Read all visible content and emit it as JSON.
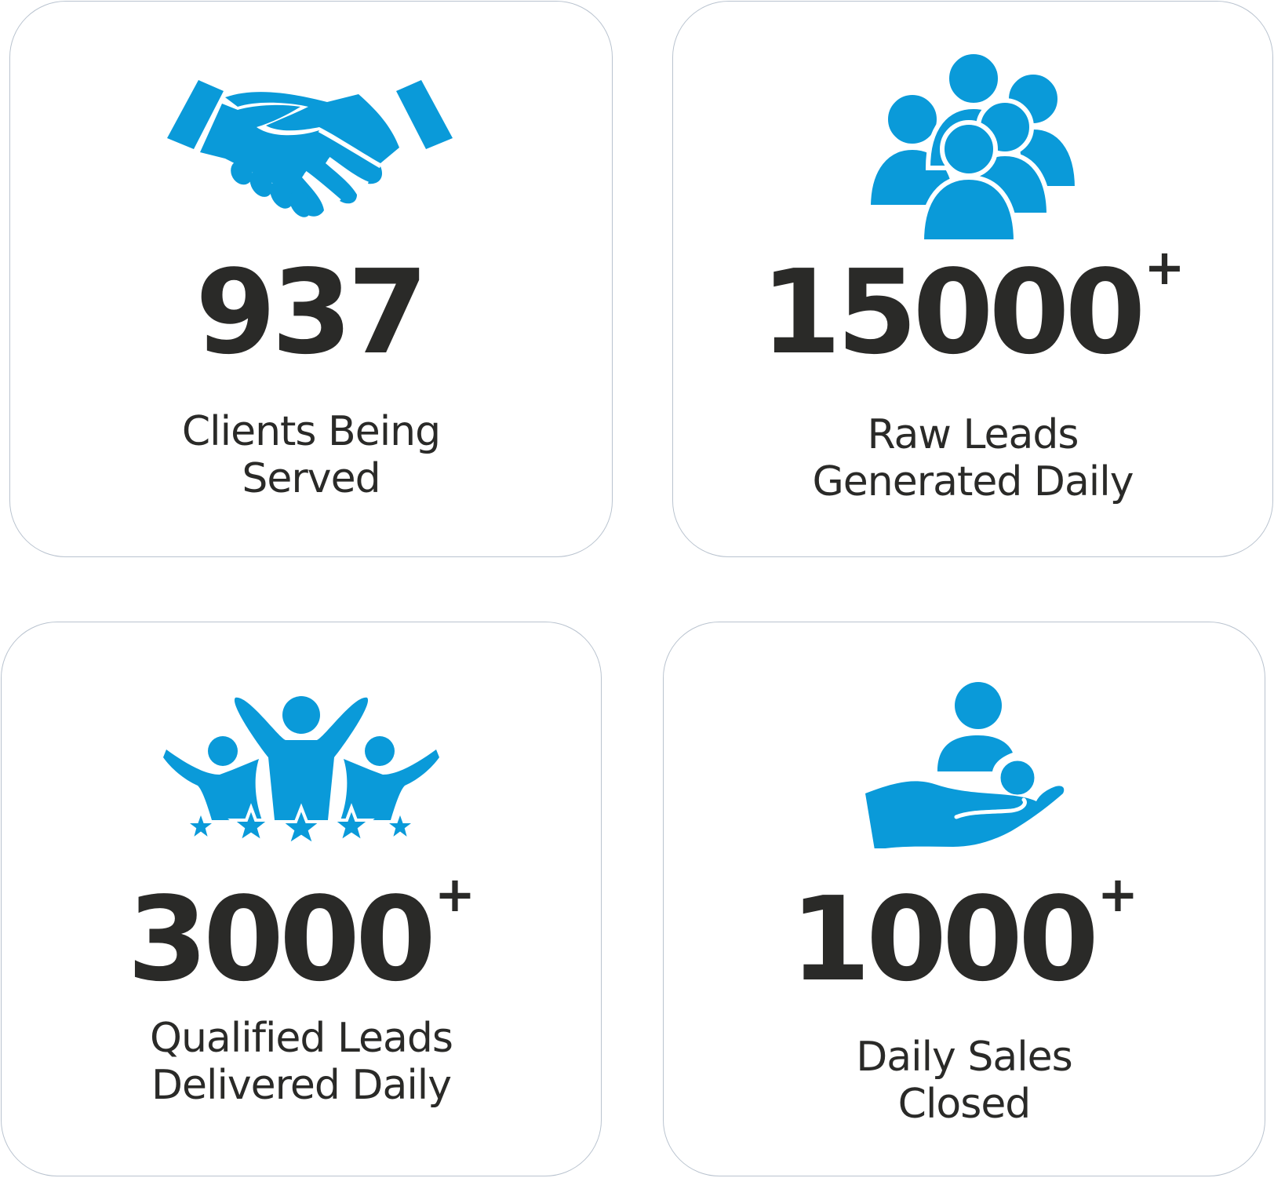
{
  "accent_color": "#0a9ad9",
  "text_color": "#2a2a28",
  "stats": [
    {
      "icon": "handshake-icon",
      "value": "937",
      "suffix": "",
      "label_lines": [
        "Clients Being",
        "Served"
      ]
    },
    {
      "icon": "group-of-people-icon",
      "value": "15000",
      "suffix": "+",
      "label_lines": [
        "Raw Leads",
        "Generated Daily"
      ]
    },
    {
      "icon": "celebrating-people-stars-icon",
      "value": "3000",
      "suffix": "+",
      "label_lines": [
        "Qualified Leads",
        "Delivered Daily"
      ]
    },
    {
      "icon": "hand-holding-people-icon",
      "value": "1000",
      "suffix": "+",
      "label_lines": [
        "Daily Sales",
        "Closed"
      ]
    }
  ]
}
